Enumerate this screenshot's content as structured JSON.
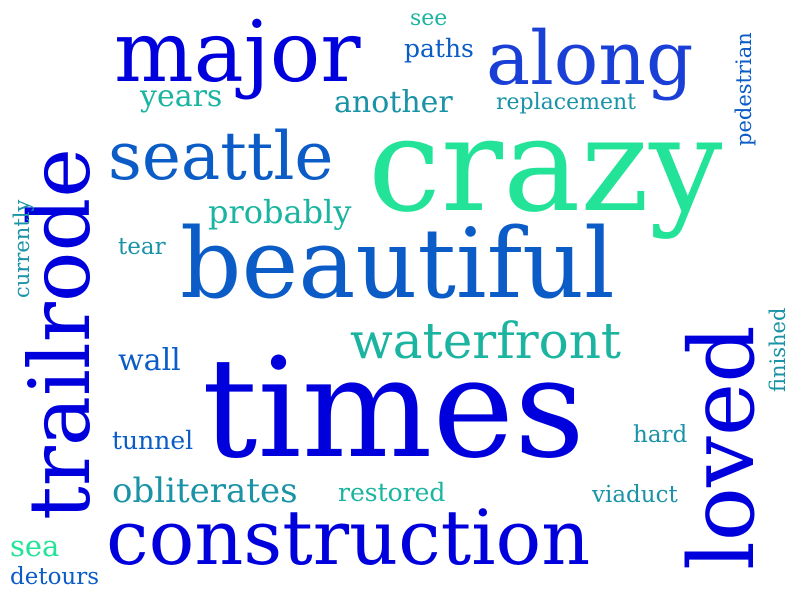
{
  "cloud": {
    "crazy": "crazy",
    "times": "times",
    "beautiful": "beautiful",
    "construction": "construction",
    "major": "major",
    "along": "along",
    "trailrode": "trailrode",
    "loved": "loved",
    "seattle": "seattle",
    "waterfront": "waterfront",
    "probably": "probably",
    "another": "another",
    "years": "years",
    "paths": "paths",
    "see": "see",
    "replacement": "replacement",
    "pedestrian": "pedestrian",
    "currently": "currently",
    "tear": "tear",
    "wall": "wall",
    "tunnel": "tunnel",
    "obliterates": "obliterates",
    "restored": "restored",
    "hard": "hard",
    "finished": "finished",
    "viaduct": "viaduct",
    "sea": "sea",
    "detours": "detours"
  },
  "colors": {
    "blue": "#0000dd",
    "royal": "#1a3fd6",
    "mid": "#0b5cc6",
    "teal": "#1a93a6",
    "sea": "#1bb4a0",
    "green": "#23e398"
  }
}
